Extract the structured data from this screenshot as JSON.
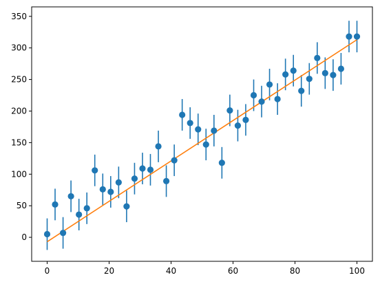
{
  "chart_data": {
    "type": "scatter",
    "title": "",
    "xlabel": "",
    "ylabel": "",
    "xlim": [
      -5,
      105
    ],
    "ylim": [
      -38,
      365
    ],
    "x_ticks": [
      0,
      20,
      40,
      60,
      80,
      100
    ],
    "y_ticks": [
      0,
      50,
      100,
      150,
      200,
      250,
      300,
      350
    ],
    "x_tick_labels": [
      "0",
      "20",
      "40",
      "60",
      "80",
      "100"
    ],
    "y_tick_labels": [
      "0",
      "50",
      "100",
      "150",
      "200",
      "250",
      "300",
      "350"
    ],
    "grid": false,
    "legend": "none",
    "series": [
      {
        "kind": "errorbar",
        "color": "#1f77b4",
        "error": 25,
        "x": [
          0,
          2.56,
          5.13,
          7.69,
          10.26,
          12.82,
          15.38,
          17.95,
          20.51,
          23.08,
          25.64,
          28.21,
          30.77,
          33.33,
          35.9,
          38.46,
          41.03,
          43.59,
          46.15,
          48.72,
          51.28,
          53.85,
          56.41,
          58.97,
          61.54,
          64.1,
          66.67,
          69.23,
          71.79,
          74.36,
          76.92,
          79.49,
          82.05,
          84.62,
          87.18,
          89.74,
          92.31,
          94.87,
          97.44,
          100
        ],
        "y": [
          5,
          52,
          7,
          65,
          36,
          46,
          106,
          76,
          72,
          87,
          49,
          93,
          109,
          107,
          144,
          89,
          122,
          194,
          181,
          171,
          147,
          169,
          118,
          201,
          177,
          186,
          225,
          215,
          242,
          219,
          258,
          264,
          232,
          251,
          284,
          260,
          257,
          267,
          318,
          318
        ]
      },
      {
        "kind": "line",
        "color": "#ff7f0e",
        "x": [
          0,
          100
        ],
        "y": [
          -7,
          313
        ]
      }
    ]
  }
}
